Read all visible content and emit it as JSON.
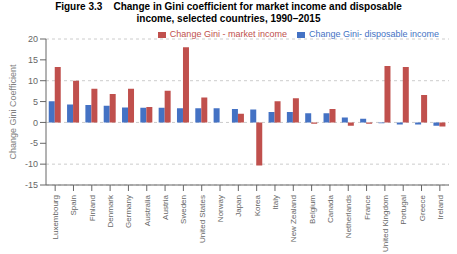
{
  "chart_data": {
    "type": "bar",
    "title": "Figure 3.3    Change in Gini coefficient for market income and disposable\nincome, selected countries, 1990–2015",
    "ylabel": "Change Gini Coefficient",
    "categories": [
      "Luxembourg",
      "Spain",
      "Finland",
      "Denmark",
      "Germany",
      "Australia",
      "Austria",
      "Sweden",
      "United States",
      "Norway",
      "Japan",
      "Korea",
      "Italy",
      "New Zealand",
      "Belgium",
      "Canada",
      "Netherlands",
      "France",
      "United Kingdom",
      "Portugal",
      "Greece",
      "Ireland"
    ],
    "series": [
      {
        "name": "Change Gini- disposable income",
        "color": "#4472C4",
        "values": [
          5.1,
          4.3,
          4.2,
          4.0,
          3.6,
          3.5,
          3.5,
          3.4,
          3.4,
          3.4,
          3.2,
          3.1,
          2.5,
          2.5,
          2.2,
          2.2,
          1.2,
          0.9,
          -0.2,
          -0.5,
          -0.5,
          -0.8
        ]
      },
      {
        "name": "Change Gini - market income",
        "color": "#C0504D",
        "values": [
          13.3,
          10.0,
          8.1,
          6.8,
          8.1,
          3.7,
          7.6,
          18.0,
          6.0,
          0.0,
          2.1,
          -10.3,
          5.1,
          5.8,
          -0.3,
          3.2,
          -0.8,
          -0.3,
          13.5,
          13.3,
          6.6,
          -1.0
        ]
      }
    ],
    "ylim": [
      -15,
      20
    ],
    "yticks": [
      -15,
      -10,
      -5,
      0,
      5,
      10,
      15,
      20
    ],
    "grid": true,
    "legend": "upper right"
  }
}
